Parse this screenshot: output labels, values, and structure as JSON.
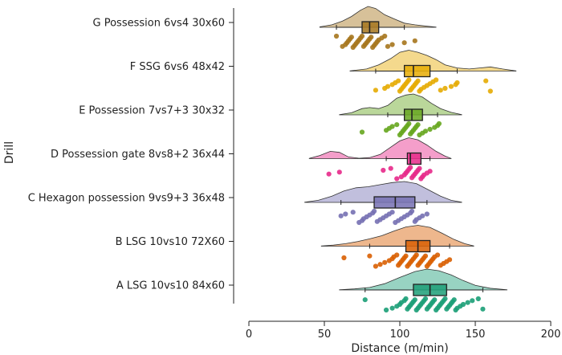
{
  "chart_data": {
    "type": "raincloud",
    "orientation": "horizontal",
    "title": "",
    "xlabel": "Distance (m/min)",
    "ylabel": "Drill",
    "xlim": [
      0,
      200
    ],
    "xticks": [
      0,
      50,
      100,
      150,
      200
    ],
    "grid": false,
    "series": [
      {
        "name": "G Possession 6vs4 30x60",
        "color": "#a6761d",
        "box": {
          "whisker_low": 58,
          "q1": 75,
          "median": 80,
          "q3": 86,
          "whisker_high": 103
        },
        "density": [
          [
            47,
            0.02
          ],
          [
            55,
            0.12
          ],
          [
            62,
            0.3
          ],
          [
            68,
            0.52
          ],
          [
            74,
            0.82
          ],
          [
            79,
            1.0
          ],
          [
            84,
            0.9
          ],
          [
            90,
            0.6
          ],
          [
            97,
            0.38
          ],
          [
            103,
            0.2
          ],
          [
            110,
            0.12
          ],
          [
            117,
            0.06
          ],
          [
            124,
            0.01
          ]
        ],
        "points": [
          58,
          62,
          64,
          65,
          66,
          67,
          68,
          69,
          70,
          71,
          72,
          73,
          74,
          75,
          76,
          77,
          78,
          79,
          80,
          81,
          82,
          83,
          84,
          85,
          86,
          88,
          90,
          92,
          95,
          103,
          110
        ]
      },
      {
        "name": "F SSG 6vs6 48x42",
        "color": "#e6ab02",
        "box": {
          "whisker_low": 84,
          "q1": 103,
          "median": 109,
          "q3": 120,
          "whisker_high": 138
        },
        "density": [
          [
            67,
            0.01
          ],
          [
            78,
            0.1
          ],
          [
            86,
            0.3
          ],
          [
            94,
            0.6
          ],
          [
            100,
            0.9
          ],
          [
            106,
            1.0
          ],
          [
            112,
            0.9
          ],
          [
            118,
            0.75
          ],
          [
            124,
            0.55
          ],
          [
            130,
            0.3
          ],
          [
            138,
            0.15
          ],
          [
            146,
            0.1
          ],
          [
            153,
            0.15
          ],
          [
            160,
            0.2
          ],
          [
            168,
            0.1
          ],
          [
            177,
            0.01
          ]
        ],
        "points": [
          84,
          90,
          92,
          95,
          97,
          99,
          100,
          101,
          102,
          103,
          104,
          105,
          106,
          107,
          108,
          109,
          110,
          111,
          112,
          113,
          114,
          116,
          118,
          120,
          122,
          124,
          127,
          130,
          134,
          137,
          138,
          157,
          160
        ]
      },
      {
        "name": "E Possession 7vs7+3 30x32",
        "color": "#66a61e",
        "box": {
          "whisker_low": 92,
          "q1": 103,
          "median": 108,
          "q3": 115,
          "whisker_high": 125
        },
        "density": [
          [
            60,
            0.01
          ],
          [
            68,
            0.1
          ],
          [
            75,
            0.3
          ],
          [
            80,
            0.35
          ],
          [
            86,
            0.3
          ],
          [
            92,
            0.45
          ],
          [
            98,
            0.8
          ],
          [
            104,
            0.95
          ],
          [
            109,
            1.0
          ],
          [
            115,
            0.85
          ],
          [
            121,
            0.55
          ],
          [
            127,
            0.3
          ],
          [
            134,
            0.12
          ],
          [
            141,
            0.01
          ]
        ],
        "points": [
          75,
          91,
          93,
          95,
          98,
          100,
          101,
          102,
          103,
          104,
          105,
          106,
          107,
          108,
          109,
          110,
          111,
          112,
          113,
          115,
          117,
          120,
          123,
          125,
          126
        ]
      },
      {
        "name": "D Possession gate 8vs8+2 36x44",
        "color": "#e7298a",
        "box": {
          "whisker_low": 91,
          "q1": 105,
          "median": 107,
          "q3": 114,
          "whisker_high": 120
        },
        "density": [
          [
            40,
            0.01
          ],
          [
            47,
            0.15
          ],
          [
            54,
            0.35
          ],
          [
            60,
            0.3
          ],
          [
            66,
            0.08
          ],
          [
            73,
            0.02
          ],
          [
            80,
            0.05
          ],
          [
            87,
            0.2
          ],
          [
            94,
            0.55
          ],
          [
            100,
            0.85
          ],
          [
            106,
            1.0
          ],
          [
            112,
            0.9
          ],
          [
            118,
            0.65
          ],
          [
            124,
            0.35
          ],
          [
            130,
            0.12
          ],
          [
            134,
            0.01
          ]
        ],
        "points": [
          53,
          60,
          89,
          94,
          98,
          101,
          103,
          104,
          105,
          106,
          107,
          108,
          109,
          110,
          111,
          112,
          113,
          114,
          115,
          116,
          118,
          120
        ]
      },
      {
        "name": "C Hexagon possession 9vs9+3 36x48",
        "color": "#7570b3",
        "box": {
          "whisker_low": 61,
          "q1": 83,
          "median": 97,
          "q3": 110,
          "whisker_high": 118
        },
        "density": [
          [
            37,
            0.01
          ],
          [
            46,
            0.1
          ],
          [
            55,
            0.3
          ],
          [
            63,
            0.55
          ],
          [
            71,
            0.7
          ],
          [
            79,
            0.75
          ],
          [
            87,
            0.85
          ],
          [
            95,
            0.95
          ],
          [
            103,
            1.0
          ],
          [
            111,
            0.9
          ],
          [
            119,
            0.6
          ],
          [
            127,
            0.3
          ],
          [
            134,
            0.1
          ],
          [
            141,
            0.01
          ]
        ],
        "points": [
          61,
          64,
          69,
          73,
          75,
          76,
          78,
          80,
          82,
          83,
          85,
          87,
          89,
          91,
          93,
          95,
          97,
          99,
          101,
          103,
          105,
          107,
          108,
          110,
          111,
          113,
          115,
          118
        ]
      },
      {
        "name": "B LSG 10vs10 72X60",
        "color": "#d95f02",
        "box": {
          "whisker_low": 80,
          "q1": 104,
          "median": 112,
          "q3": 120,
          "whisker_high": 133
        },
        "density": [
          [
            48,
            0.01
          ],
          [
            56,
            0.05
          ],
          [
            64,
            0.12
          ],
          [
            72,
            0.22
          ],
          [
            80,
            0.35
          ],
          [
            88,
            0.5
          ],
          [
            96,
            0.72
          ],
          [
            104,
            0.92
          ],
          [
            112,
            1.0
          ],
          [
            120,
            0.9
          ],
          [
            128,
            0.62
          ],
          [
            136,
            0.32
          ],
          [
            143,
            0.12
          ],
          [
            149,
            0.01
          ]
        ],
        "points": [
          63,
          80,
          84,
          87,
          90,
          93,
          95,
          96,
          98,
          99,
          100,
          101,
          102,
          103,
          104,
          105,
          106,
          107,
          108,
          109,
          110,
          111,
          112,
          113,
          114,
          115,
          116,
          117,
          118,
          119,
          120,
          121,
          122,
          123,
          125,
          127,
          129,
          131,
          133
        ]
      },
      {
        "name": "A LSG 10vs10 84x60",
        "color": "#1b9e77",
        "box": {
          "whisker_low": 77,
          "q1": 109,
          "median": 120,
          "q3": 131,
          "whisker_high": 155
        },
        "density": [
          [
            60,
            0.01
          ],
          [
            70,
            0.05
          ],
          [
            80,
            0.12
          ],
          [
            90,
            0.3
          ],
          [
            100,
            0.6
          ],
          [
            110,
            0.88
          ],
          [
            118,
            1.0
          ],
          [
            126,
            0.92
          ],
          [
            134,
            0.72
          ],
          [
            142,
            0.45
          ],
          [
            150,
            0.22
          ],
          [
            160,
            0.08
          ],
          [
            171,
            0.01
          ]
        ],
        "points": [
          77,
          91,
          95,
          98,
          100,
          101,
          103,
          104,
          105,
          106,
          107,
          108,
          109,
          110,
          111,
          112,
          113,
          114,
          115,
          116,
          117,
          118,
          119,
          120,
          121,
          122,
          123,
          124,
          125,
          126,
          127,
          128,
          129,
          130,
          131,
          132,
          133,
          134,
          135,
          136,
          137,
          138,
          140,
          142,
          145,
          148,
          152,
          155
        ]
      }
    ]
  }
}
